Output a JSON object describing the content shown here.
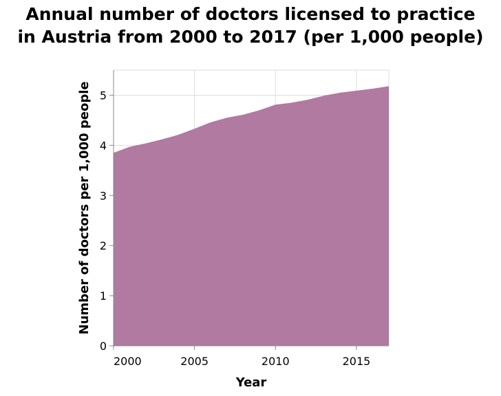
{
  "chart_data": {
    "type": "area",
    "title_lines": [
      "Annual number of doctors licensed to practice",
      "in Austria from 2000 to 2017 (per 1,000 people)"
    ],
    "xlabel": "Year",
    "ylabel": "Number of doctors per 1,000 people",
    "x": [
      2000,
      2001,
      2002,
      2003,
      2004,
      2005,
      2006,
      2007,
      2008,
      2009,
      2010,
      2011,
      2012,
      2013,
      2014,
      2015,
      2016,
      2017
    ],
    "values": [
      3.85,
      3.97,
      4.04,
      4.12,
      4.21,
      4.33,
      4.46,
      4.55,
      4.61,
      4.7,
      4.81,
      4.85,
      4.91,
      4.99,
      5.05,
      5.09,
      5.13,
      5.18
    ],
    "xlim": [
      2000,
      2017
    ],
    "ylim": [
      0,
      5.5
    ],
    "x_ticks": [
      2000,
      2005,
      2010,
      2015
    ],
    "y_ticks": [
      0,
      1,
      2,
      3,
      4,
      5
    ],
    "grid": true,
    "colors": {
      "area": "#b07aa1",
      "grid": "#dddddd",
      "axis": "#888888"
    }
  }
}
